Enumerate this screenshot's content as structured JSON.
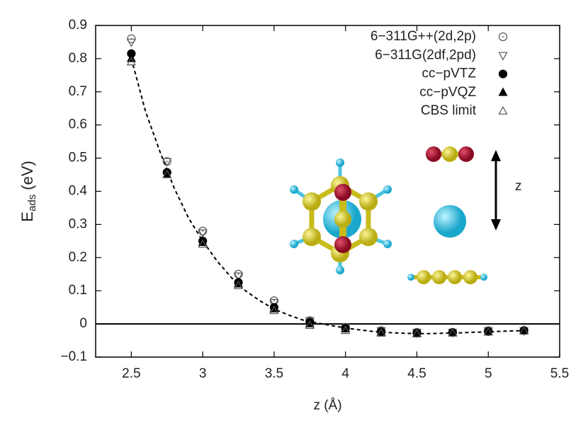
{
  "chart_data": {
    "type": "scatter",
    "x_label": "z (Å)",
    "y_label": {
      "main": "E",
      "sub": "ads",
      "unit": "(eV)"
    },
    "annotations": [
      "z"
    ],
    "x": [
      2.5,
      2.75,
      3,
      3.25,
      3.5,
      3.75,
      4,
      4.25,
      4.5,
      4.75,
      5,
      5.25
    ],
    "series": [
      {
        "name": "6−311G++(2d,2p)",
        "color": "#555555",
        "marker": "circle-open",
        "values": [
          0.86,
          0.49,
          0.28,
          0.15,
          0.07,
          0.01,
          -0.01,
          -0.02,
          -0.025,
          -0.025,
          -0.02,
          -0.02
        ]
      },
      {
        "name": "6−311G(2df,2pd)",
        "color": "#555555",
        "marker": "triangle-down-open",
        "values": [
          0.85,
          0.49,
          0.275,
          0.145,
          0.065,
          0.01,
          -0.01,
          -0.02,
          -0.025,
          -0.025,
          -0.02,
          -0.02
        ]
      },
      {
        "name": "cc−pVTZ",
        "color": "#000000",
        "marker": "circle-filled",
        "values": [
          0.815,
          0.457,
          0.25,
          0.125,
          0.05,
          0.005,
          -0.013,
          -0.024,
          -0.028,
          -0.026,
          -0.023,
          -0.02
        ]
      },
      {
        "name": "cc−pVQZ",
        "color": "#000000",
        "marker": "triangle-filled",
        "values": [
          0.8,
          0.45,
          0.245,
          0.12,
          0.045,
          0.0,
          -0.015,
          -0.025,
          -0.03,
          -0.027,
          -0.024,
          -0.02
        ]
      },
      {
        "name": "CBS limit",
        "color": "#555555",
        "marker": "triangle-open",
        "values": [
          0.79,
          0.45,
          0.24,
          0.115,
          0.04,
          -0.005,
          -0.02,
          -0.028,
          -0.03,
          -0.028,
          -0.025,
          -0.022
        ]
      }
    ],
    "fit": {
      "color": "#000000",
      "x": [
        2.5,
        2.6,
        2.7,
        2.8,
        2.9,
        3.0,
        3.1,
        3.2,
        3.3,
        3.4,
        3.5,
        3.6,
        3.7,
        3.8,
        3.9,
        4.0,
        4.1,
        4.2,
        4.3,
        4.4,
        4.5,
        4.6,
        4.7,
        4.8,
        4.9,
        5.0,
        5.1,
        5.2,
        5.25
      ],
      "values": [
        0.8,
        0.64,
        0.52,
        0.41,
        0.32,
        0.25,
        0.19,
        0.14,
        0.1,
        0.07,
        0.045,
        0.027,
        0.012,
        0.003,
        -0.005,
        -0.012,
        -0.018,
        -0.023,
        -0.026,
        -0.028,
        -0.029,
        -0.029,
        -0.028,
        -0.027,
        -0.025,
        -0.024,
        -0.022,
        -0.021,
        -0.02
      ]
    },
    "xlim": [
      2.25,
      5.5
    ],
    "ylim": [
      -0.1,
      0.9
    ],
    "xticks": [
      2.5,
      3,
      3.5,
      4,
      4.5,
      5,
      5.5
    ],
    "yticks": [
      {
        "value": -0.1,
        "label": "−0.1"
      },
      0,
      0.1,
      0.2,
      0.3,
      0.4,
      0.5,
      0.6,
      0.7,
      0.8,
      0.9
    ],
    "zero_line": true
  }
}
